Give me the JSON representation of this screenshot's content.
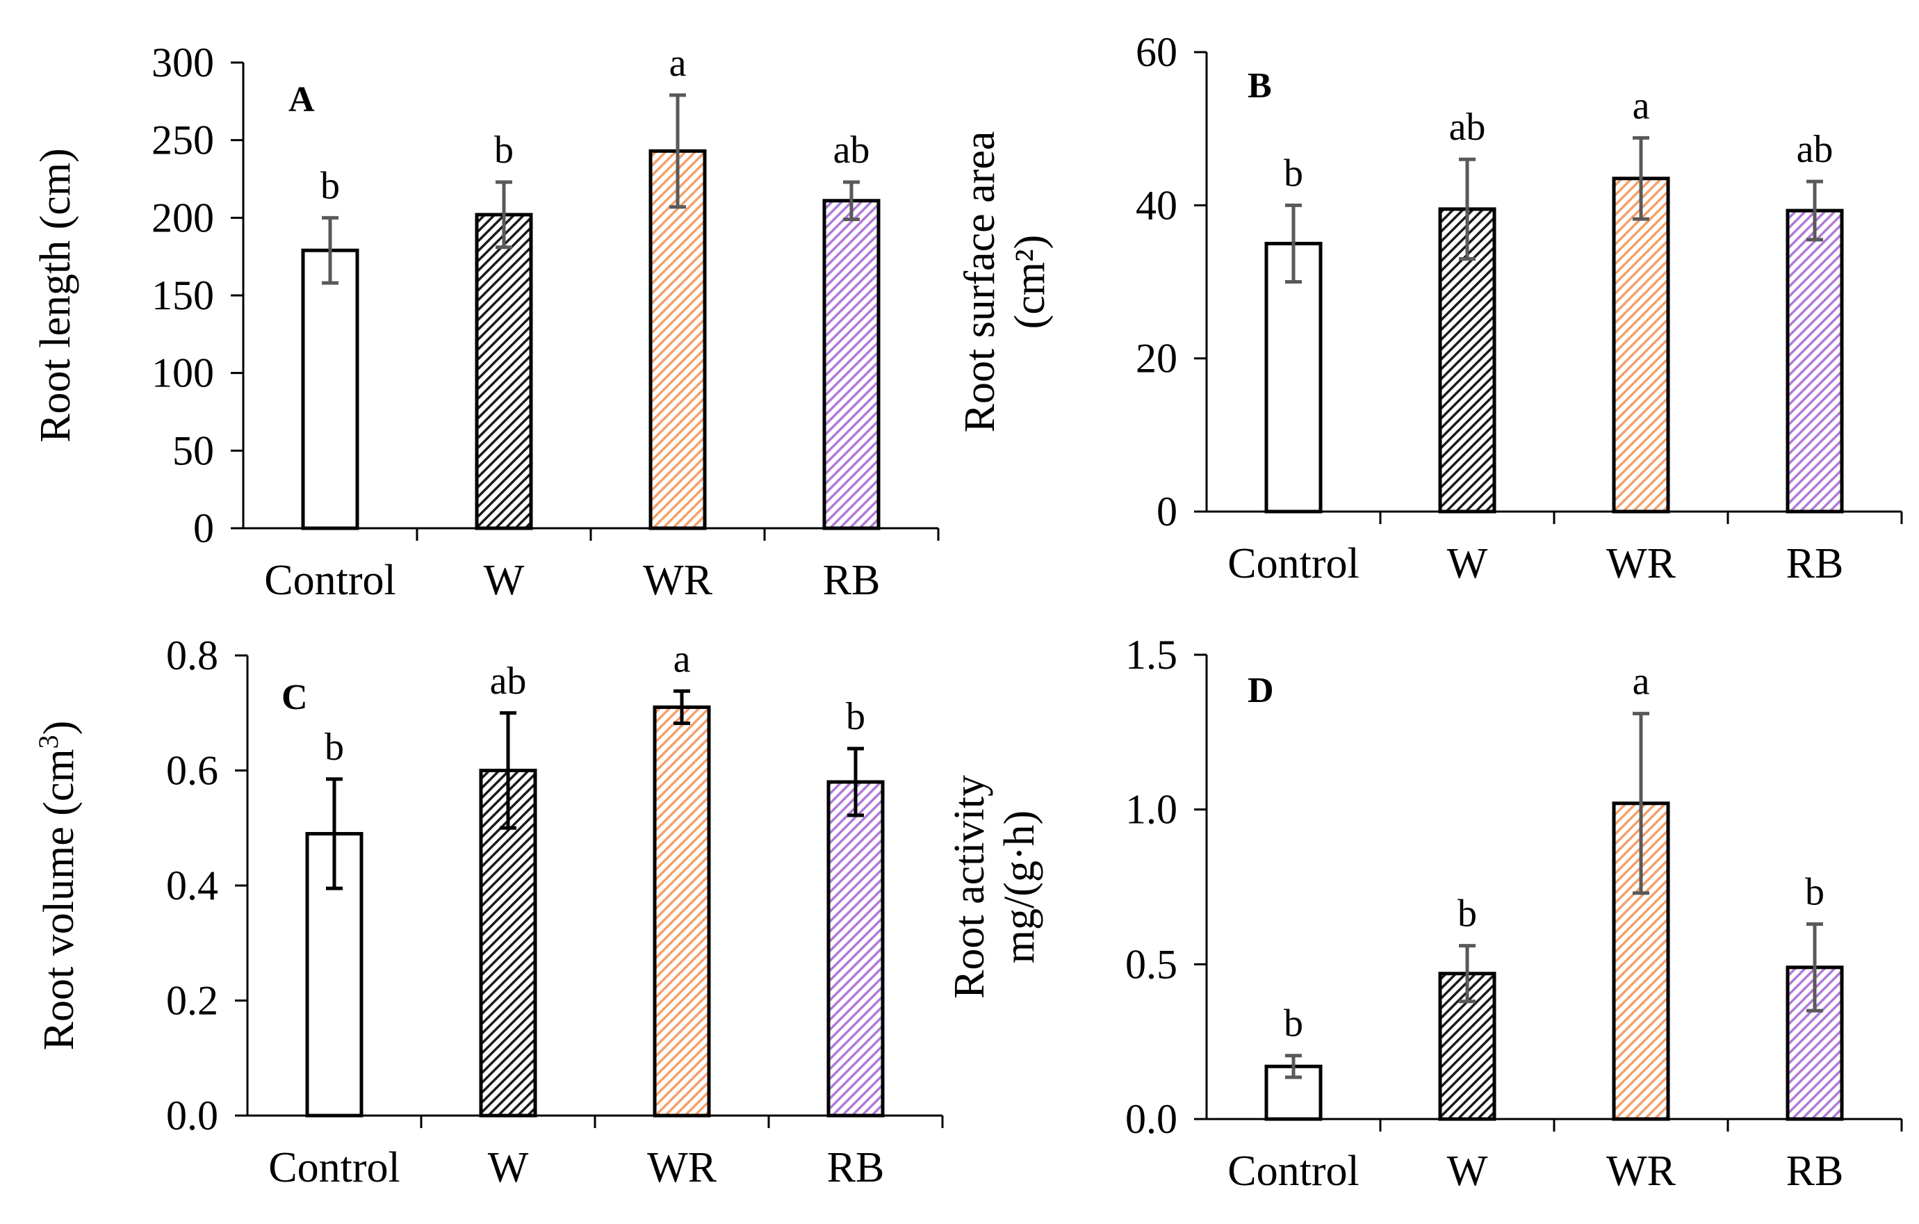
{
  "chart_data": [
    {
      "type": "bar",
      "panel_label": "A",
      "ylabel": "Root length (cm)",
      "ylabel_sup": "",
      "ylabel_tail": "",
      "ylabel_line2": "",
      "categories": [
        "Control",
        "W",
        "WR",
        "RB"
      ],
      "values": [
        179,
        202,
        243,
        211
      ],
      "errors": [
        21,
        21,
        36,
        12
      ],
      "significance": [
        "b",
        "b",
        "a",
        "ab"
      ],
      "ylim": [
        0,
        300
      ],
      "yticks": [
        0,
        50,
        100,
        150,
        200,
        250,
        300
      ],
      "ytick_labels": [
        "0",
        "50",
        "100",
        "150",
        "200",
        "250",
        "300"
      ],
      "error_color": "#595959"
    },
    {
      "type": "bar",
      "panel_label": "B",
      "ylabel": "Root surface  area",
      "ylabel_sup": "",
      "ylabel_tail": "",
      "ylabel_line2": "(cm²)",
      "categories": [
        "Control",
        "W",
        "WR",
        "RB"
      ],
      "values": [
        35,
        39.5,
        43.5,
        39.3
      ],
      "errors": [
        5,
        6.5,
        5.3,
        3.8
      ],
      "significance": [
        "b",
        "ab",
        "a",
        "ab"
      ],
      "ylim": [
        0,
        60
      ],
      "yticks": [
        0,
        20,
        40,
        60
      ],
      "ytick_labels": [
        "0",
        "20",
        "40",
        "60"
      ],
      "error_color": "#595959"
    },
    {
      "type": "bar",
      "panel_label": "C",
      "ylabel": "Root volume (cm",
      "ylabel_sup": "3",
      "ylabel_tail": ")",
      "ylabel_line2": "",
      "categories": [
        "Control",
        "W",
        "WR",
        "RB"
      ],
      "values": [
        0.49,
        0.6,
        0.71,
        0.58
      ],
      "errors": [
        0.095,
        0.1,
        0.028,
        0.058
      ],
      "significance": [
        "b",
        "ab",
        "a",
        "b"
      ],
      "ylim": [
        0,
        0.8
      ],
      "yticks": [
        0,
        0.2,
        0.4,
        0.6,
        0.8
      ],
      "ytick_labels": [
        "0.0",
        "0.2",
        "0.4",
        "0.6",
        "0.8"
      ],
      "error_color": "#000000"
    },
    {
      "type": "bar",
      "panel_label": "D",
      "ylabel": "Root activity",
      "ylabel_sup": "",
      "ylabel_tail": "",
      "ylabel_line2": "mg/(g·h)",
      "categories": [
        "Control",
        "W",
        "WR",
        "RB"
      ],
      "values": [
        0.17,
        0.47,
        1.02,
        0.49
      ],
      "errors": [
        0.035,
        0.09,
        0.29,
        0.14
      ],
      "significance": [
        "b",
        "b",
        "a",
        "b"
      ],
      "ylim": [
        0,
        1.5
      ],
      "yticks": [
        0,
        0.5,
        1.0,
        1.5
      ],
      "ytick_labels": [
        "0.0",
        "0.5",
        "1.0",
        "1.5"
      ],
      "error_color": "#595959"
    }
  ],
  "styles": {
    "fills": [
      "#ffffff",
      "#1a1a1a",
      "#f4a06a",
      "#b07ad8"
    ],
    "axis_color": "#000000"
  }
}
